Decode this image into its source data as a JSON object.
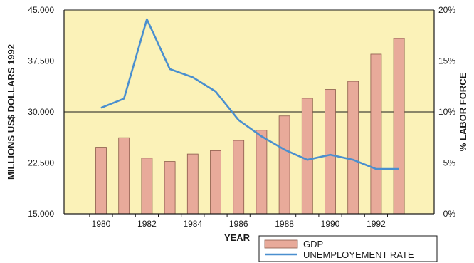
{
  "chart_data": {
    "type": "bar",
    "categories": [
      "1980",
      "1981",
      "1982",
      "1983",
      "1984",
      "1985",
      "1986",
      "1987",
      "1988",
      "1989",
      "1990",
      "1991",
      "1992",
      "1993"
    ],
    "x_tick_labels": [
      "1980",
      "1982",
      "1984",
      "1986",
      "1988",
      "1990",
      "1992"
    ],
    "series": [
      {
        "name": "GDP",
        "type": "bar",
        "axis": "left",
        "values": [
          24800,
          26200,
          23200,
          22700,
          23800,
          24300,
          25800,
          27300,
          29400,
          32000,
          33300,
          34500,
          38500,
          40800
        ]
      },
      {
        "name": "UNEMPLOYEMENT RATE",
        "type": "line",
        "axis": "right",
        "values": [
          10.4,
          11.3,
          19.1,
          14.2,
          13.4,
          12.0,
          9.2,
          7.6,
          6.3,
          5.3,
          5.8,
          5.3,
          4.4,
          4.4
        ]
      }
    ],
    "xlabel": "YEAR",
    "ylabel_left": "MILLIONS US$ DOLLARS 1992",
    "ylabel_right": "% LABOR FORCE",
    "ylim_left": [
      15000,
      45000
    ],
    "ylim_right": [
      0,
      20
    ],
    "yticks_left": [
      15000,
      22500,
      30000,
      37500,
      45000
    ],
    "ytick_labels_left": [
      "15.000",
      "22.500",
      "30.000",
      "37.500",
      "45.000"
    ],
    "yticks_right": [
      0,
      5,
      10,
      15,
      20
    ],
    "ytick_labels_right": [
      "0%",
      "5%",
      "10%",
      "15%",
      "20%"
    ],
    "grid": true,
    "legend_position": "bottom-right",
    "colors": {
      "plot_background": "#fbf2b8",
      "bar_fill": "#e8aa9a",
      "bar_stroke": "#8a5a4a",
      "line": "#4a8fcf",
      "grid": "#1a1a1a"
    }
  }
}
